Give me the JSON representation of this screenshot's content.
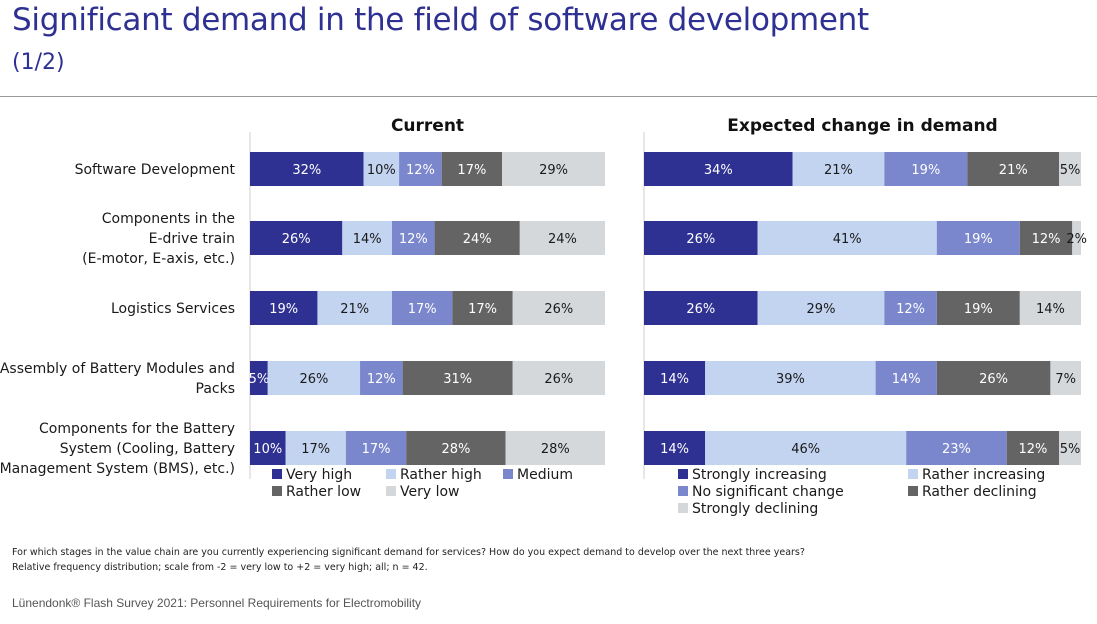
{
  "header": {
    "title": "Significant demand in the field of software development",
    "subtitle": "(1/2)"
  },
  "footnote": {
    "line1": "For which stages in the value chain are you currently experiencing significant demand for services? How do you expect demand to develop over the next three years?",
    "line2": "Relative frequency distribution; scale from -2 = very low to +2 = very high; all; n = 42."
  },
  "source": "Lünendonk® Flash Survey 2021: Personnel Requirements for Electromobility",
  "chart_data": [
    {
      "type": "bar",
      "orientation": "horizontal-stacked-100",
      "title": "Current",
      "categories": [
        [
          "Software Development"
        ],
        [
          "Components in the",
          "E-drive train",
          "(E-motor, E-axis, etc.)"
        ],
        [
          "Logistics Services"
        ],
        [
          "Assembly of Battery Modules and",
          "Packs"
        ],
        [
          "Components for the Battery",
          "System (Cooling, Battery",
          "Management System (BMS), etc.)"
        ]
      ],
      "series": [
        {
          "name": "Very high",
          "color": "#2e3192",
          "values": [
            32,
            26,
            19,
            5,
            10
          ]
        },
        {
          "name": "Rather high",
          "color": "#c3d4f0",
          "values": [
            10,
            14,
            21,
            26,
            17
          ]
        },
        {
          "name": "Medium",
          "color": "#7b87cc",
          "values": [
            12,
            12,
            17,
            12,
            17
          ]
        },
        {
          "name": "Rather low",
          "color": "#646464",
          "values": [
            17,
            24,
            17,
            31,
            28
          ]
        },
        {
          "name": "Very low",
          "color": "#d5d8db",
          "values": [
            29,
            24,
            26,
            26,
            28
          ]
        }
      ],
      "unit": "%",
      "legend_position": "bottom"
    },
    {
      "type": "bar",
      "orientation": "horizontal-stacked-100",
      "title": "Expected change in demand",
      "categories": [
        [
          "Software Development"
        ],
        [
          "Components in the",
          "E-drive train",
          "(E-motor, E-axis, etc.)"
        ],
        [
          "Logistics Services"
        ],
        [
          "Assembly of Battery Modules and",
          "Packs"
        ],
        [
          "Components for the Battery",
          "System (Cooling, Battery",
          "Management System (BMS), etc.)"
        ]
      ],
      "series": [
        {
          "name": "Strongly increasing",
          "color": "#2e3192",
          "values": [
            34,
            26,
            26,
            14,
            14
          ]
        },
        {
          "name": "Rather increasing",
          "color": "#c3d4f0",
          "values": [
            21,
            41,
            29,
            39,
            46
          ]
        },
        {
          "name": "No significant change",
          "color": "#7b87cc",
          "values": [
            19,
            19,
            12,
            14,
            23
          ]
        },
        {
          "name": "Rather declining",
          "color": "#646464",
          "values": [
            21,
            12,
            19,
            26,
            12
          ]
        },
        {
          "name": "Strongly declining",
          "color": "#d5d8db",
          "values": [
            5,
            2,
            14,
            7,
            5
          ]
        }
      ],
      "unit": "%",
      "legend_position": "bottom"
    }
  ]
}
